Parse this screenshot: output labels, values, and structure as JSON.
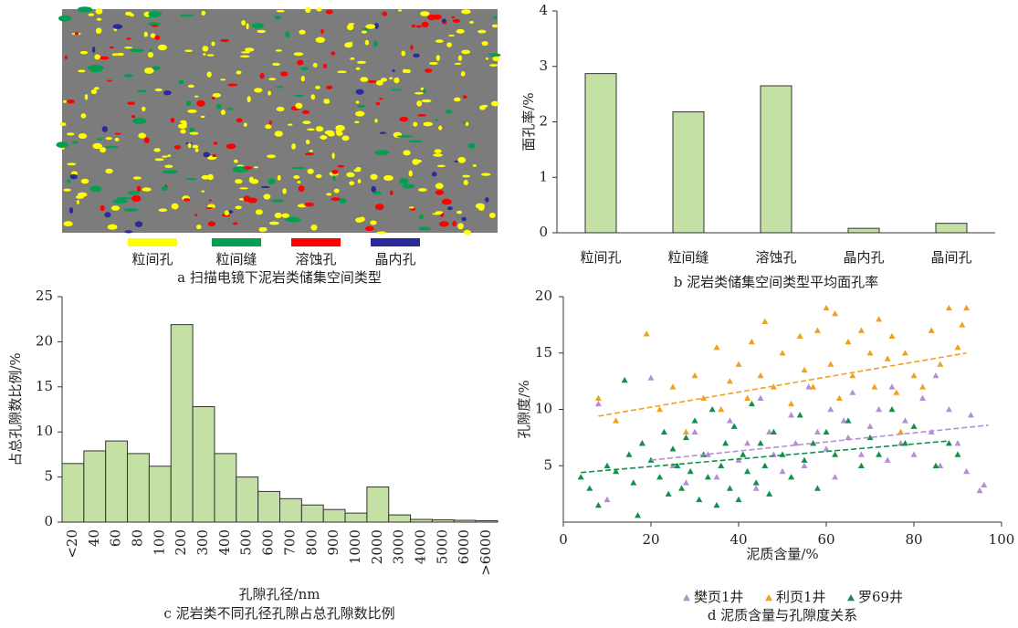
{
  "chart_data": [
    {
      "type": "image",
      "caption": "a 扫描电镜下泥岩类储集空间类型",
      "legend": [
        {
          "name": "粒间孔",
          "color": "#ffff00"
        },
        {
          "name": "粒间缝",
          "color": "#00a050"
        },
        {
          "name": "溶蚀孔",
          "color": "#ff0000"
        },
        {
          "name": "晶内孔",
          "color": "#2a2a9a"
        }
      ]
    },
    {
      "type": "bar",
      "caption": "b 泥岩类储集空间类型平均面孔率",
      "ylabel": "面孔率/%",
      "categories": [
        "粒间孔",
        "粒间缝",
        "溶蚀孔",
        "晶内孔",
        "晶间孔"
      ],
      "values": [
        2.87,
        2.18,
        2.65,
        0.08,
        0.17
      ],
      "color": "#c5e0a5",
      "ylim": [
        0,
        4
      ],
      "yticks": [
        0,
        1,
        2,
        3,
        4
      ]
    },
    {
      "type": "histogram",
      "caption": "c 泥岩类不同孔径孔隙占总孔隙数比例",
      "xlabel": "孔隙孔径/nm",
      "ylabel": "占总孔隙数比例/%",
      "categories": [
        "<20",
        "40",
        "60",
        "80",
        "100",
        "200",
        "300",
        "400",
        "500",
        "600",
        "700",
        "800",
        "900",
        "1000",
        "2000",
        "3000",
        "4000",
        "5000",
        "6000",
        ">6000"
      ],
      "values": [
        6.5,
        7.9,
        9.0,
        7.6,
        6.2,
        21.9,
        12.8,
        7.6,
        5.0,
        3.4,
        2.6,
        1.9,
        1.4,
        1.0,
        3.9,
        0.8,
        0.3,
        0.25,
        0.2,
        0.15
      ],
      "color": "#c5e0a5",
      "ylim": [
        0,
        25
      ],
      "yticks": [
        0,
        5,
        10,
        15,
        20,
        25
      ]
    },
    {
      "type": "scatter",
      "caption": "d 泥质含量与孔隙度关系",
      "xlabel": "泥质含量/%",
      "ylabel": "孔隙度/%",
      "xlim": [
        0,
        100
      ],
      "xticks": [
        0,
        20,
        40,
        60,
        80,
        100
      ],
      "ylim": [
        0,
        20
      ],
      "yticks": [
        5,
        10,
        15,
        20
      ],
      "series": [
        {
          "name": "樊页1井",
          "color": "#b48fd4",
          "x": [
            8,
            10,
            18,
            20,
            25,
            28,
            30,
            33,
            35,
            38,
            40,
            42,
            44,
            45,
            47,
            48,
            50,
            52,
            53,
            55,
            56,
            58,
            60,
            61,
            62,
            64,
            65,
            66,
            68,
            70,
            72,
            74,
            75,
            77,
            78,
            80,
            82,
            84,
            86,
            88,
            90,
            92,
            95,
            96,
            93,
            85
          ],
          "values": [
            10.5,
            2,
            7,
            12.8,
            5,
            3.5,
            8,
            6,
            4,
            9,
            5.5,
            7,
            3,
            11,
            8,
            6,
            4.5,
            9.5,
            7,
            5,
            12,
            8,
            6.5,
            10,
            4,
            9,
            7.5,
            11.5,
            6,
            8.5,
            10,
            5.5,
            12,
            7,
            9,
            6,
            11,
            8,
            5,
            10,
            7,
            4.5,
            2.8,
            3.3,
            9.5,
            13
          ],
          "trend": {
            "x": [
              20,
              97
            ],
            "y": [
              5.5,
              8.6
            ]
          }
        },
        {
          "name": "利页1井",
          "color": "#f0a020",
          "x": [
            8,
            12,
            19,
            22,
            25,
            28,
            30,
            32,
            35,
            36,
            38,
            40,
            42,
            43,
            45,
            46,
            48,
            50,
            52,
            54,
            55,
            57,
            58,
            60,
            61,
            62,
            63,
            65,
            66,
            68,
            70,
            71,
            72,
            74,
            75,
            76,
            78,
            80,
            82,
            84,
            86,
            88,
            90,
            92,
            91,
            77
          ],
          "values": [
            11,
            9,
            16.7,
            10,
            12,
            8,
            13,
            11,
            15.5,
            10,
            12.5,
            14,
            11,
            16,
            13,
            17.8,
            12,
            15,
            10.5,
            16.5,
            13.5,
            12,
            17,
            19,
            14,
            18.5,
            11,
            16,
            13,
            17,
            15,
            12,
            18,
            14.5,
            16.5,
            11.5,
            15,
            13,
            12,
            17,
            14,
            19,
            15.5,
            19,
            17.5,
            8
          ],
          "trend": {
            "x": [
              8,
              92
            ],
            "y": [
              9.4,
              15
            ]
          }
        },
        {
          "name": "罗69井",
          "color": "#10904a",
          "x": [
            4,
            6,
            8,
            10,
            12,
            14,
            15,
            16,
            17,
            18,
            20,
            22,
            23,
            24,
            25,
            26,
            27,
            28,
            29,
            30,
            31,
            32,
            33,
            34,
            35,
            36,
            37,
            38,
            39,
            40,
            41,
            42,
            43,
            44,
            45,
            46,
            47,
            48,
            50,
            52,
            54,
            55,
            57,
            58,
            60,
            62,
            65,
            68,
            70,
            72,
            75,
            78,
            80,
            85,
            88,
            90
          ],
          "values": [
            4,
            3,
            1.5,
            5,
            4.5,
            12.6,
            6,
            3.5,
            0.6,
            7,
            5.5,
            4,
            8,
            2.5,
            6.5,
            5,
            3,
            7.5,
            4.5,
            9,
            2,
            6,
            4,
            10,
            1.5,
            5,
            7,
            3,
            8.5,
            2,
            6,
            4.5,
            10.5,
            3.5,
            7,
            5,
            2.5,
            8,
            6,
            4,
            9.5,
            5.5,
            7,
            3,
            8,
            6,
            9,
            5,
            7.5,
            6,
            10,
            7,
            8.5,
            5,
            7,
            6
          ],
          "trend": {
            "x": [
              4,
              88
            ],
            "y": [
              4.4,
              7.2
            ]
          }
        }
      ]
    }
  ]
}
